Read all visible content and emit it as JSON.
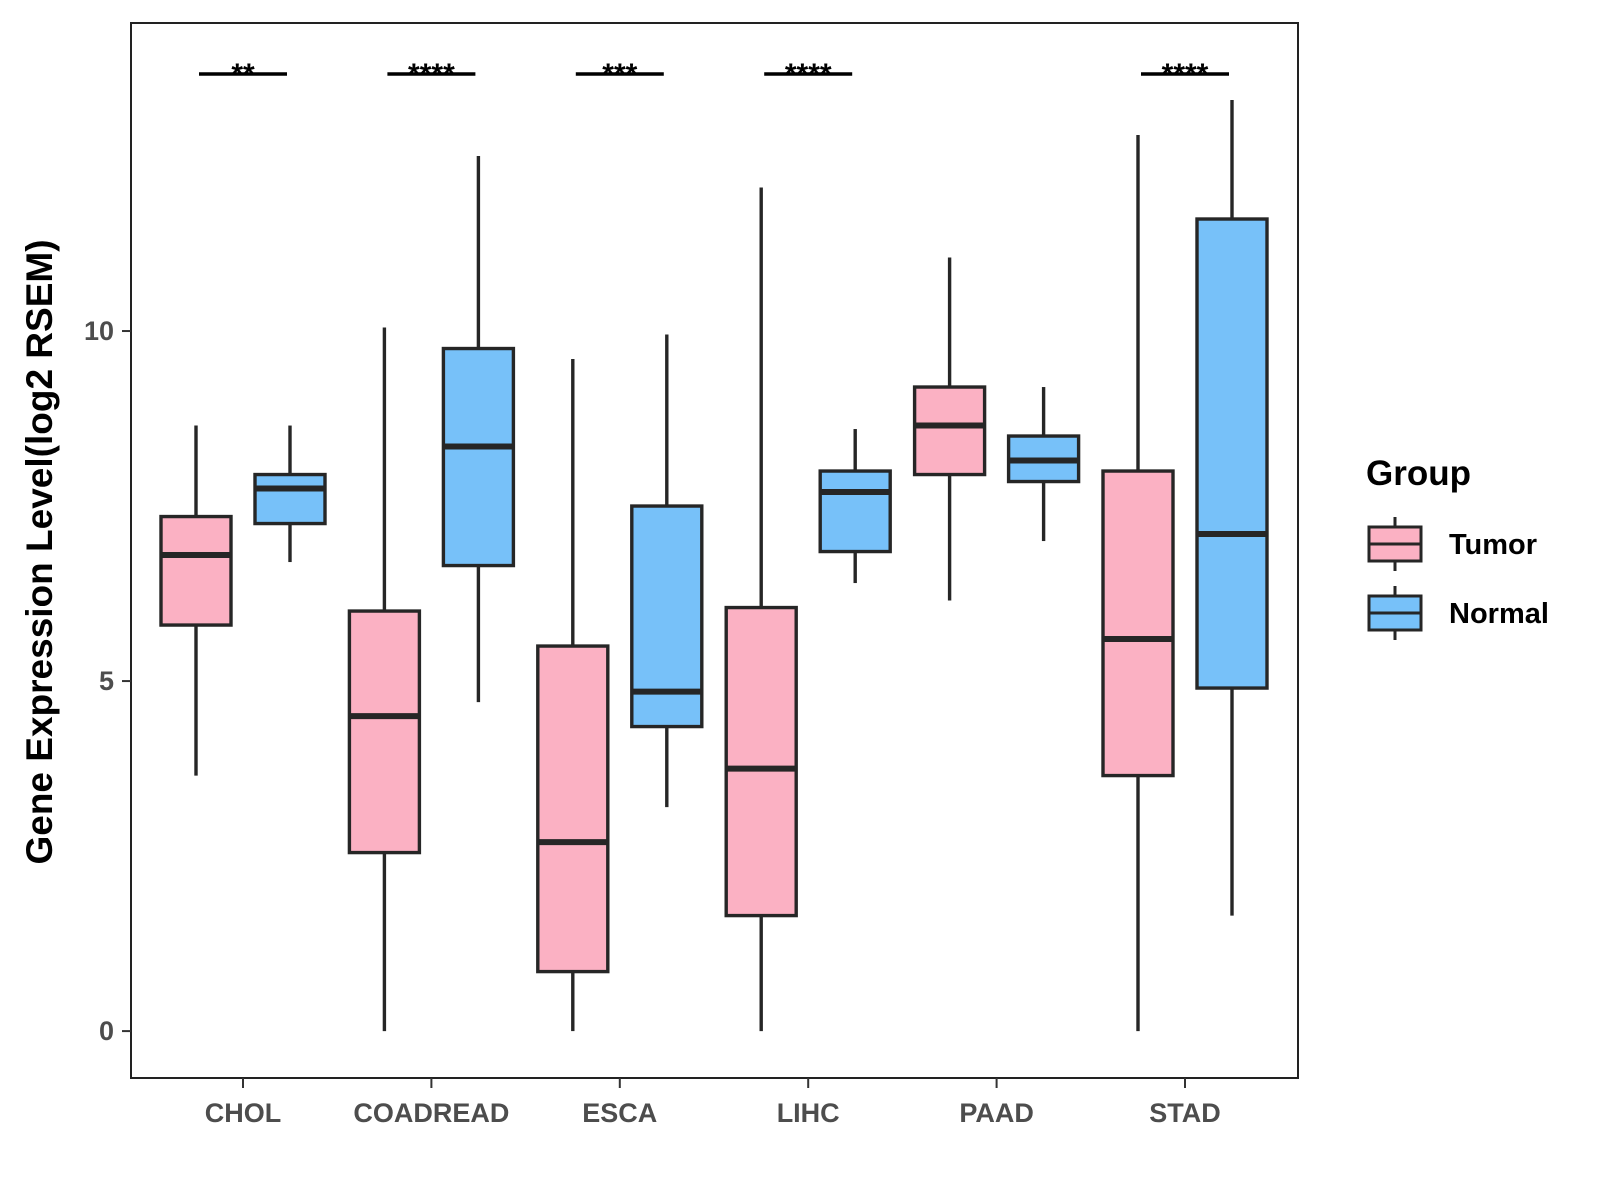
{
  "chart_data": {
    "type": "boxplot",
    "title": "",
    "xlabel": "",
    "ylabel": "Gene Expression Level(log2 RSEM)",
    "ylim": [
      -0.67,
      14.4
    ],
    "yticks": [
      0,
      5,
      10
    ],
    "categories": [
      "CHOL",
      "COADREAD",
      "ESCA",
      "LIHC",
      "PAAD",
      "STAD"
    ],
    "legend": {
      "title": "Group",
      "position": "right"
    },
    "series": [
      {
        "name": "Tumor",
        "color": "#FBB1C3",
        "boxes": [
          {
            "whisker_low": 3.65,
            "q1": 5.8,
            "median": 6.8,
            "q3": 7.35,
            "whisker_high": 8.65
          },
          {
            "whisker_low": 0.0,
            "q1": 2.55,
            "median": 4.5,
            "q3": 6.0,
            "whisker_high": 10.05
          },
          {
            "whisker_low": 0.0,
            "q1": 0.85,
            "median": 2.7,
            "q3": 5.5,
            "whisker_high": 9.6
          },
          {
            "whisker_low": 0.0,
            "q1": 1.65,
            "median": 3.75,
            "q3": 6.05,
            "whisker_high": 12.05
          },
          {
            "whisker_low": 6.15,
            "q1": 7.95,
            "median": 8.65,
            "q3": 9.2,
            "whisker_high": 11.05
          },
          {
            "whisker_low": 0.0,
            "q1": 3.65,
            "median": 5.6,
            "q3": 8.0,
            "whisker_high": 12.8
          }
        ]
      },
      {
        "name": "Normal",
        "color": "#77C1F9",
        "boxes": [
          {
            "whisker_low": 6.7,
            "q1": 7.25,
            "median": 7.75,
            "q3": 7.95,
            "whisker_high": 8.65
          },
          {
            "whisker_low": 4.7,
            "q1": 6.65,
            "median": 8.35,
            "q3": 9.75,
            "whisker_high": 12.5
          },
          {
            "whisker_low": 3.2,
            "q1": 4.35,
            "median": 4.85,
            "q3": 7.5,
            "whisker_high": 9.95
          },
          {
            "whisker_low": 6.4,
            "q1": 6.85,
            "median": 7.7,
            "q3": 8.0,
            "whisker_high": 8.6
          },
          {
            "whisker_low": 7.0,
            "q1": 7.85,
            "median": 8.15,
            "q3": 8.5,
            "whisker_high": 9.2
          },
          {
            "whisker_low": 1.65,
            "q1": 4.9,
            "median": 7.1,
            "q3": 11.6,
            "whisker_high": 13.3
          }
        ]
      }
    ],
    "significance": [
      {
        "category": "CHOL",
        "label": "**"
      },
      {
        "category": "COADREAD",
        "label": "****"
      },
      {
        "category": "ESCA",
        "label": "***"
      },
      {
        "category": "LIHC",
        "label": "****"
      },
      {
        "category": "STAD",
        "label": "****"
      }
    ]
  }
}
